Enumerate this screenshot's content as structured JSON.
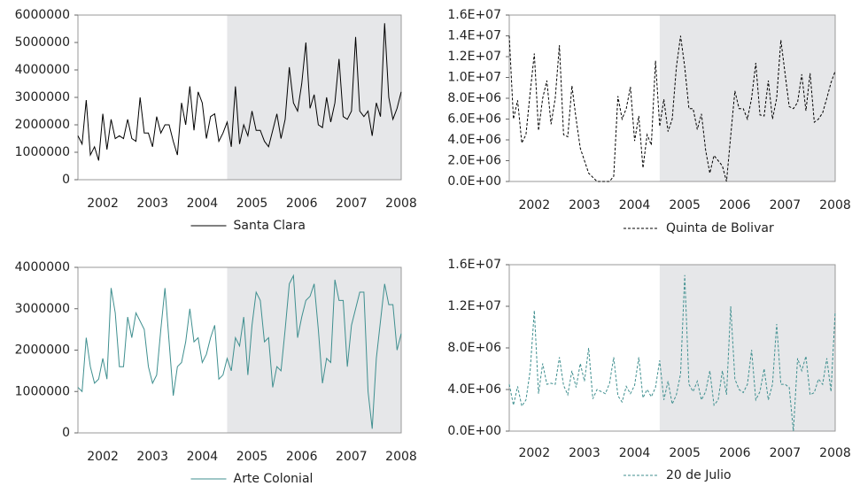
{
  "chart_data": [
    {
      "type": "line",
      "categories": [
        null,
        null,
        null,
        null,
        null,
        null,
        "2002",
        null,
        null,
        null,
        null,
        null,
        null,
        null,
        null,
        null,
        null,
        null,
        "2003",
        null,
        null,
        null,
        null,
        null,
        null,
        null,
        null,
        null,
        null,
        null,
        "2004",
        null,
        null,
        null,
        null,
        null,
        null,
        null,
        null,
        null,
        null,
        null,
        "2005",
        null,
        null,
        null,
        null,
        null,
        null,
        null,
        null,
        null,
        null,
        null,
        "2006",
        null,
        null,
        null,
        null,
        null,
        null,
        null,
        null,
        null,
        null,
        null,
        "2007",
        null,
        null,
        null,
        null,
        null,
        null,
        null,
        null,
        null,
        null,
        null,
        "2008"
      ],
      "series": [
        {
          "name": "Santa Clara",
          "color": "#000000",
          "line_style": "solid",
          "values": [
            1600000,
            1300000,
            2900000,
            900000,
            1200000,
            700000,
            2400000,
            1100000,
            2200000,
            1500000,
            1600000,
            1500000,
            2200000,
            1500000,
            1400000,
            3000000,
            1700000,
            1700000,
            1200000,
            2300000,
            1700000,
            2000000,
            2000000,
            1400000,
            900000,
            2800000,
            2000000,
            3400000,
            1800000,
            3200000,
            2800000,
            1500000,
            2300000,
            2400000,
            1400000,
            1700000,
            2100000,
            1200000,
            3400000,
            1300000,
            2000000,
            1600000,
            2500000,
            1800000,
            1800000,
            1400000,
            1200000,
            1800000,
            2400000,
            1500000,
            2200000,
            4100000,
            2800000,
            2500000,
            3500000,
            5000000,
            2600000,
            3100000,
            2000000,
            1900000,
            3000000,
            2100000,
            2800000,
            4400000,
            2300000,
            2200000,
            2500000,
            5200000,
            2500000,
            2300000,
            2500000,
            1600000,
            2800000,
            2300000,
            5700000,
            3000000,
            2200000,
            2600000,
            3200000
          ]
        }
      ],
      "ylim": [
        0,
        6000000
      ],
      "yticks": [
        0,
        1000000,
        2000000,
        3000000,
        4000000,
        5000000,
        6000000
      ],
      "highlight": {
        "start_index": 36,
        "color": "#e6e7e9"
      }
    },
    {
      "type": "line",
      "categories": [
        null,
        null,
        null,
        null,
        null,
        null,
        "2002",
        null,
        null,
        null,
        null,
        null,
        null,
        null,
        null,
        null,
        null,
        null,
        "2003",
        null,
        null,
        null,
        null,
        null,
        null,
        null,
        null,
        null,
        null,
        null,
        "2004",
        null,
        null,
        null,
        null,
        null,
        null,
        null,
        null,
        null,
        null,
        null,
        "2005",
        null,
        null,
        null,
        null,
        null,
        null,
        null,
        null,
        null,
        null,
        null,
        "2006",
        null,
        null,
        null,
        null,
        null,
        null,
        null,
        null,
        null,
        null,
        null,
        "2007",
        null,
        null,
        null,
        null,
        null,
        null,
        null,
        null,
        null,
        null,
        null,
        "2008"
      ],
      "series": [
        {
          "name": "Quinta de Bolivar",
          "color": "#000000",
          "line_style": "dashed",
          "values": [
            14000000,
            6000000,
            7800000,
            3700000,
            4500000,
            8500000,
            12300000,
            4900000,
            8000000,
            9700000,
            5500000,
            8000000,
            13100000,
            4500000,
            4300000,
            9200000,
            6000000,
            3200000,
            2000000,
            800000,
            400000,
            0,
            0,
            0,
            0,
            500000,
            8200000,
            6000000,
            7000000,
            9100000,
            3900000,
            6300000,
            1300000,
            4500000,
            3500000,
            11600000,
            5300000,
            7900000,
            4800000,
            6000000,
            11000000,
            14000000,
            11000000,
            7000000,
            7000000,
            5000000,
            6500000,
            3000000,
            800000,
            2500000,
            2000000,
            1500000,
            0,
            4400000,
            8700000,
            7000000,
            7000000,
            6000000,
            8000000,
            11400000,
            6400000,
            6300000,
            9700000,
            6000000,
            8000000,
            13600000,
            10400000,
            7200000,
            7000000,
            7600000,
            10300000,
            6800000,
            10400000,
            5700000,
            6000000,
            6600000,
            8000000,
            9500000,
            10600000
          ]
        }
      ],
      "ylim": [
        0,
        16000000
      ],
      "yticks": [
        {
          "value": 0,
          "label": "0.0E+00"
        },
        {
          "value": 2000000,
          "label": "2.0E+06"
        },
        {
          "value": 4000000,
          "label": "4.0E+06"
        },
        {
          "value": 6000000,
          "label": "6.0E+06"
        },
        {
          "value": 8000000,
          "label": "8.0E+06"
        },
        {
          "value": 10000000,
          "label": "1.0E+07"
        },
        {
          "value": 12000000,
          "label": "1.2E+07"
        },
        {
          "value": 14000000,
          "label": "1.4E+07"
        },
        {
          "value": 16000000,
          "label": "1.6E+07"
        }
      ],
      "highlight": {
        "start_index": 36,
        "color": "#e6e7e9"
      }
    },
    {
      "type": "line",
      "categories": [
        null,
        null,
        null,
        null,
        null,
        null,
        "2002",
        null,
        null,
        null,
        null,
        null,
        null,
        null,
        null,
        null,
        null,
        null,
        "2003",
        null,
        null,
        null,
        null,
        null,
        null,
        null,
        null,
        null,
        null,
        null,
        "2004",
        null,
        null,
        null,
        null,
        null,
        null,
        null,
        null,
        null,
        null,
        null,
        "2005",
        null,
        null,
        null,
        null,
        null,
        null,
        null,
        null,
        null,
        null,
        null,
        "2006",
        null,
        null,
        null,
        null,
        null,
        null,
        null,
        null,
        null,
        null,
        null,
        "2007",
        null,
        null,
        null,
        null,
        null,
        null,
        null,
        null,
        null,
        null,
        null,
        "2008"
      ],
      "series": [
        {
          "name": "Arte Colonial",
          "color": "#3f8f8f",
          "line_style": "solid",
          "values": [
            1100000,
            1000000,
            2300000,
            1600000,
            1200000,
            1300000,
            1800000,
            1300000,
            3500000,
            2900000,
            1600000,
            1600000,
            2800000,
            2300000,
            2900000,
            2700000,
            2500000,
            1600000,
            1200000,
            1400000,
            2500000,
            3500000,
            2200000,
            900000,
            1600000,
            1700000,
            2200000,
            3000000,
            2200000,
            2300000,
            1700000,
            1900000,
            2300000,
            2600000,
            1300000,
            1400000,
            1800000,
            1500000,
            2300000,
            2100000,
            2800000,
            1400000,
            2600000,
            3400000,
            3200000,
            2200000,
            2300000,
            1100000,
            1600000,
            1500000,
            2500000,
            3600000,
            3800000,
            2300000,
            2800000,
            3200000,
            3300000,
            3600000,
            2500000,
            1200000,
            1800000,
            1700000,
            3700000,
            3200000,
            3200000,
            1600000,
            2600000,
            3000000,
            3400000,
            3400000,
            1000000,
            100000,
            1800000,
            2700000,
            3600000,
            3100000,
            3100000,
            2000000,
            2400000
          ]
        }
      ],
      "ylim": [
        0,
        4000000
      ],
      "yticks": [
        0,
        1000000,
        2000000,
        3000000,
        4000000
      ],
      "highlight": {
        "start_index": 36,
        "color": "#e6e7e9"
      }
    },
    {
      "type": "line",
      "categories": [
        null,
        null,
        null,
        null,
        null,
        null,
        "2002",
        null,
        null,
        null,
        null,
        null,
        null,
        null,
        null,
        null,
        null,
        null,
        "2003",
        null,
        null,
        null,
        null,
        null,
        null,
        null,
        null,
        null,
        null,
        null,
        "2004",
        null,
        null,
        null,
        null,
        null,
        null,
        null,
        null,
        null,
        null,
        null,
        "2005",
        null,
        null,
        null,
        null,
        null,
        null,
        null,
        null,
        null,
        null,
        null,
        "2006",
        null,
        null,
        null,
        null,
        null,
        null,
        null,
        null,
        null,
        null,
        null,
        "2007",
        null,
        null,
        null,
        null,
        null,
        null,
        null,
        null,
        null,
        null,
        null,
        "2008"
      ],
      "series": [
        {
          "name": "20 de Julio",
          "color": "#3f8f8f",
          "line_style": "dashed",
          "values": [
            4500000,
            2500000,
            4300000,
            2400000,
            3000000,
            5800000,
            11600000,
            3600000,
            6500000,
            4500000,
            4600000,
            4500000,
            7100000,
            4400000,
            3500000,
            5800000,
            4200000,
            6500000,
            4800000,
            8000000,
            3100000,
            4000000,
            3800000,
            3600000,
            4600000,
            7100000,
            3400000,
            2800000,
            4300000,
            3600000,
            4400000,
            7100000,
            3200000,
            4000000,
            3300000,
            4200000,
            6800000,
            3000000,
            4800000,
            2600000,
            3500000,
            5500000,
            15000000,
            4500000,
            3800000,
            4800000,
            3000000,
            3800000,
            5800000,
            2500000,
            3000000,
            5800000,
            3500000,
            12000000,
            5000000,
            4000000,
            3700000,
            4500000,
            7800000,
            3000000,
            3800000,
            6000000,
            3000000,
            4500000,
            10300000,
            4500000,
            4500000,
            4200000,
            0,
            7000000,
            5800000,
            7200000,
            3500000,
            3700000,
            5000000,
            4500000,
            7000000,
            3800000,
            11500000
          ]
        }
      ],
      "ylim": [
        0,
        16000000
      ],
      "yticks": [
        {
          "value": 0,
          "label": "0.0E+00"
        },
        {
          "value": 4000000,
          "label": "4.0E+06"
        },
        {
          "value": 8000000,
          "label": "8.0E+06"
        },
        {
          "value": 12000000,
          "label": "1.2E+07"
        },
        {
          "value": 16000000,
          "label": "1.6E+07"
        }
      ],
      "highlight": {
        "start_index": 36,
        "color": "#e6e7e9"
      }
    }
  ]
}
